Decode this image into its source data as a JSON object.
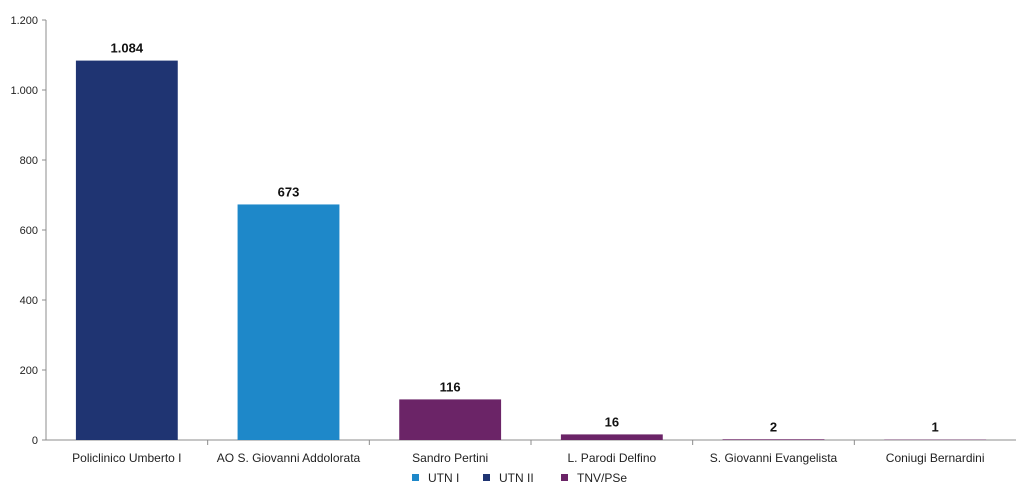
{
  "chart_data": {
    "type": "bar",
    "title": "",
    "xlabel": "",
    "ylabel": "",
    "ylim": [
      0,
      1200
    ],
    "yticks": [
      0,
      200,
      400,
      600,
      800,
      1000,
      1200
    ],
    "ytick_labels": [
      "0",
      "200",
      "400",
      "600",
      "800",
      "1.000",
      "1.200"
    ],
    "grid": false,
    "legend_position": "bottom-center",
    "categories": [
      "Policlinico Umberto I",
      "AO S. Giovanni Addolorata",
      "Sandro Pertini",
      "L. Parodi Delfino",
      "S. Giovanni Evangelista",
      "Coniugi Bernardini"
    ],
    "values": [
      1084,
      673,
      116,
      16,
      2,
      1
    ],
    "value_labels": [
      "1.084",
      "673",
      "116",
      "16",
      "2",
      "1"
    ],
    "bar_series": [
      "UTN II",
      "UTN I",
      "TNV/PSe",
      "TNV/PSe",
      "TNV/PSe",
      "TNV/PSe"
    ],
    "legend": [
      {
        "name": "UTN I",
        "color": "#1e88c9"
      },
      {
        "name": "UTN II",
        "color": "#1f3472"
      },
      {
        "name": "TNV/PSe",
        "color": "#6b2467"
      }
    ]
  }
}
